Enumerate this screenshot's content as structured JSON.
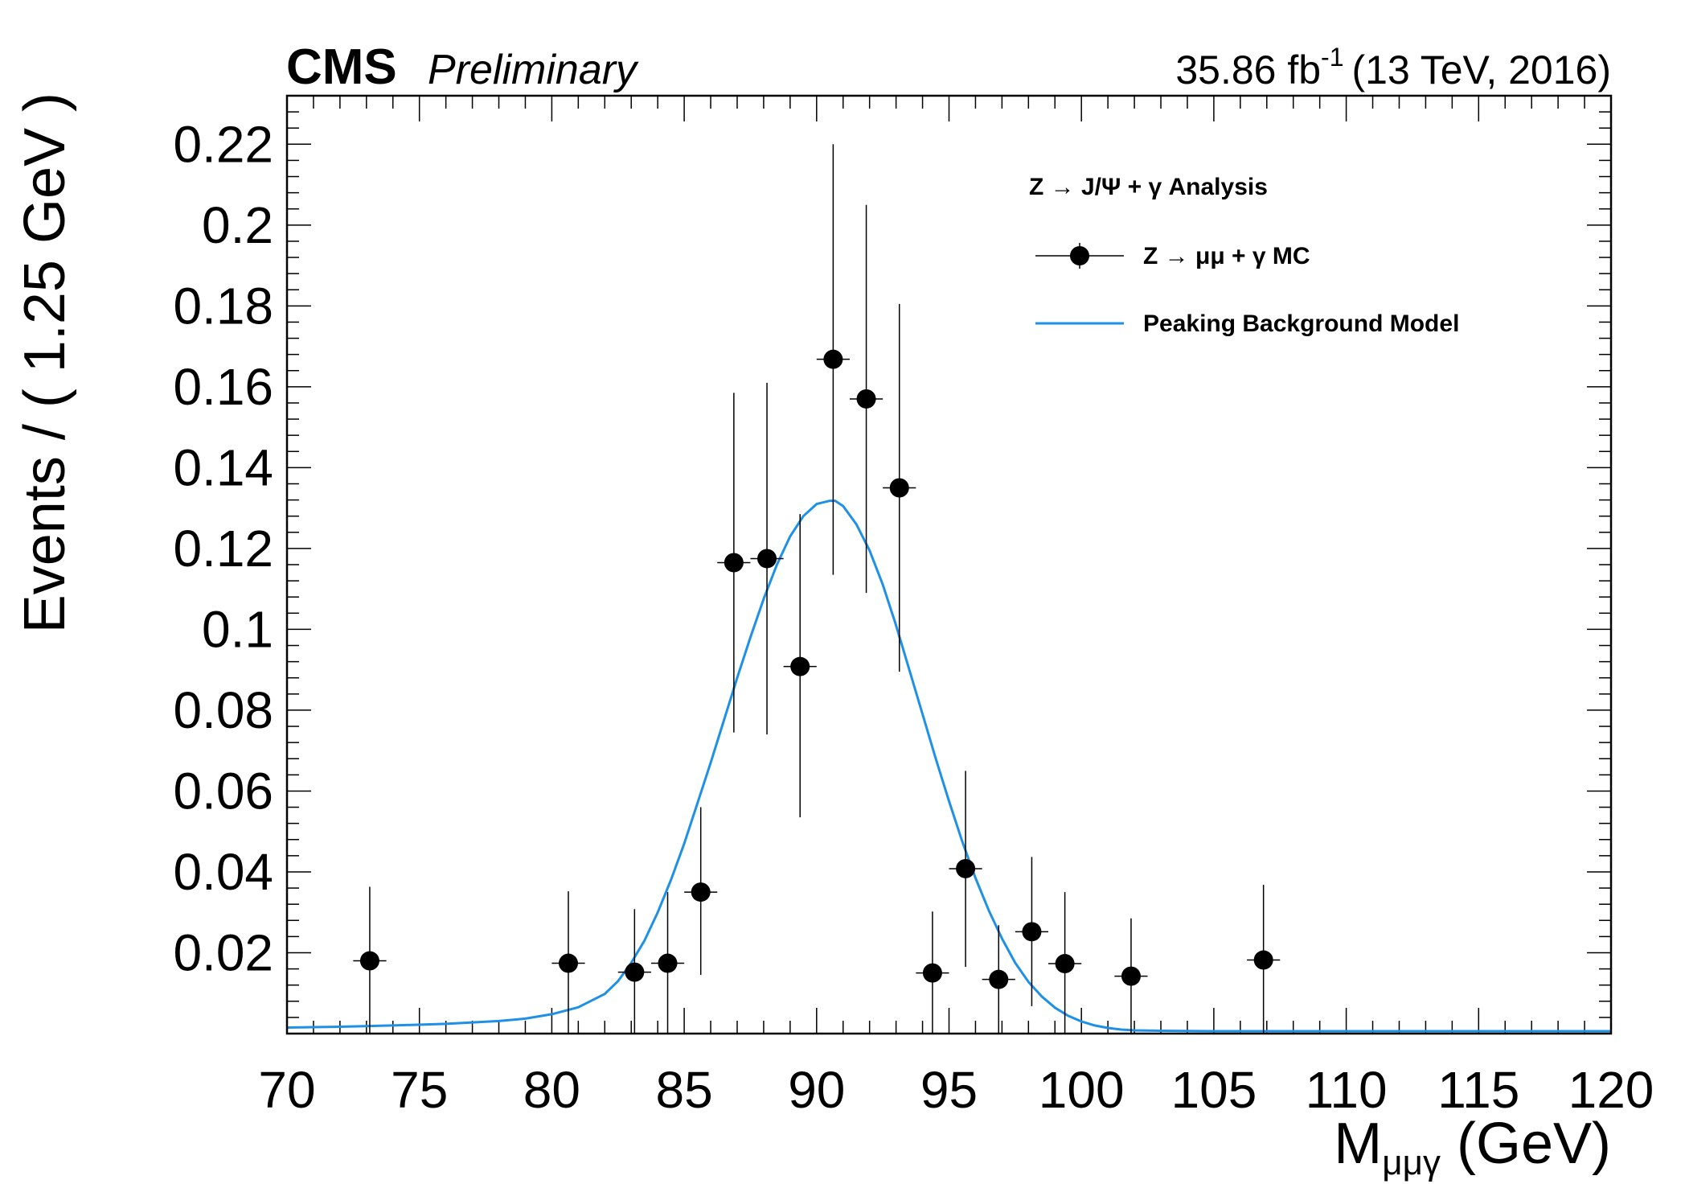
{
  "header": {
    "experiment": "CMS",
    "status": "Preliminary",
    "lumi_value": "35.86 fb",
    "lumi_sup": "-1",
    "energy": "(13 TeV, 2016)"
  },
  "legend": {
    "title": "Z → J/Ψ + γ Analysis",
    "entries": [
      {
        "label": "Z → μμ + γ MC",
        "marker": "point-with-errors"
      },
      {
        "label": "Peaking Background Model",
        "marker": "line"
      }
    ]
  },
  "colors": {
    "model_line": "#1e90e6",
    "points": "#000000",
    "frame": "#000000",
    "background": "#ffffff"
  },
  "chart_data": {
    "type": "scatter",
    "title": "",
    "xlabel_main": "M",
    "xlabel_sub": "μμγ",
    "xlabel_unit": " (GeV)",
    "ylabel": "Events / ( 1.25 GeV )",
    "xlim": [
      70,
      120
    ],
    "ylim": [
      0,
      0.232
    ],
    "x_ticks": [
      70,
      75,
      80,
      85,
      90,
      95,
      100,
      105,
      110,
      115,
      120
    ],
    "x_tick_labels": [
      "70",
      "75",
      "80",
      "85",
      "90",
      "95",
      "100",
      "105",
      "110",
      "115",
      "120"
    ],
    "y_ticks": [
      0.02,
      0.04,
      0.06,
      0.08,
      0.1,
      0.12,
      0.14,
      0.16,
      0.18,
      0.2,
      0.22
    ],
    "y_tick_labels": [
      "0.02",
      "0.04",
      "0.06",
      "0.08",
      "0.1",
      "0.12",
      "0.14",
      "0.16",
      "0.18",
      "0.2",
      "0.22"
    ],
    "grid": false,
    "legend_position": "top-right",
    "bin_width": 1.25,
    "series": [
      {
        "name": "Z → μμ + γ MC",
        "kind": "points-with-errors",
        "points": [
          {
            "x": 73.125,
            "y": 0.018,
            "ylo": 0.0,
            "yhi": 0.0363
          },
          {
            "x": 80.625,
            "y": 0.0174,
            "ylo": 0.0,
            "yhi": 0.0352
          },
          {
            "x": 83.125,
            "y": 0.0152,
            "ylo": 0.0,
            "yhi": 0.0308
          },
          {
            "x": 84.375,
            "y": 0.0174,
            "ylo": 0.0,
            "yhi": 0.035
          },
          {
            "x": 85.625,
            "y": 0.035,
            "ylo": 0.0145,
            "yhi": 0.056
          },
          {
            "x": 86.875,
            "y": 0.1165,
            "ylo": 0.0745,
            "yhi": 0.1585
          },
          {
            "x": 88.125,
            "y": 0.1175,
            "ylo": 0.074,
            "yhi": 0.161
          },
          {
            "x": 89.375,
            "y": 0.0908,
            "ylo": 0.0535,
            "yhi": 0.1285
          },
          {
            "x": 90.625,
            "y": 0.1668,
            "ylo": 0.1135,
            "yhi": 0.22
          },
          {
            "x": 91.875,
            "y": 0.157,
            "ylo": 0.109,
            "yhi": 0.205
          },
          {
            "x": 93.125,
            "y": 0.135,
            "ylo": 0.0895,
            "yhi": 0.1805
          },
          {
            "x": 94.375,
            "y": 0.015,
            "ylo": 0.0,
            "yhi": 0.0302
          },
          {
            "x": 95.625,
            "y": 0.0408,
            "ylo": 0.0165,
            "yhi": 0.065
          },
          {
            "x": 96.875,
            "y": 0.0134,
            "ylo": 0.0,
            "yhi": 0.0268
          },
          {
            "x": 98.125,
            "y": 0.0252,
            "ylo": 0.0068,
            "yhi": 0.0437
          },
          {
            "x": 99.375,
            "y": 0.0173,
            "ylo": 0.0,
            "yhi": 0.035
          },
          {
            "x": 101.875,
            "y": 0.0142,
            "ylo": 0.0,
            "yhi": 0.0285
          },
          {
            "x": 106.875,
            "y": 0.0182,
            "ylo": 0.0,
            "yhi": 0.0368
          }
        ]
      },
      {
        "name": "Peaking Background Model",
        "kind": "line",
        "x": [
          70,
          72,
          74,
          76,
          78,
          79,
          80,
          81,
          82,
          82.5,
          83,
          83.5,
          84,
          84.5,
          85,
          85.5,
          86,
          86.5,
          87,
          87.5,
          88,
          88.5,
          89,
          89.5,
          90,
          90.5,
          90.7,
          91,
          91.5,
          92,
          92.5,
          93,
          93.5,
          94,
          94.5,
          95,
          95.5,
          96,
          96.5,
          97,
          97.5,
          98,
          98.5,
          99,
          99.5,
          100,
          100.5,
          101,
          101.5,
          102,
          103,
          105,
          110,
          115,
          120
        ],
        "y": [
          0.0015,
          0.0017,
          0.002,
          0.0024,
          0.0031,
          0.0037,
          0.0048,
          0.0065,
          0.0098,
          0.013,
          0.0175,
          0.023,
          0.03,
          0.038,
          0.047,
          0.057,
          0.067,
          0.0775,
          0.088,
          0.098,
          0.1075,
          0.116,
          0.123,
          0.128,
          0.131,
          0.1318,
          0.1318,
          0.1305,
          0.126,
          0.1195,
          0.111,
          0.101,
          0.09,
          0.079,
          0.068,
          0.0575,
          0.0475,
          0.0385,
          0.0305,
          0.0235,
          0.0175,
          0.0128,
          0.0092,
          0.0064,
          0.0044,
          0.003,
          0.002,
          0.0014,
          0.001,
          0.0008,
          0.0007,
          0.0006,
          0.0006,
          0.0006,
          0.0006
        ]
      }
    ]
  }
}
